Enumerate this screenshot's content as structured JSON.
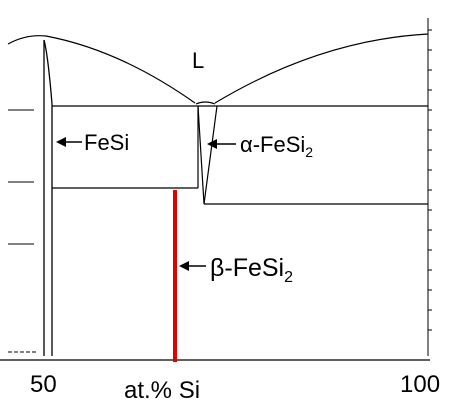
{
  "diagram": {
    "phase_liquid": "L",
    "label_fesi": "FeSi",
    "label_alpha_prefix": "α-FeSi",
    "label_alpha_sub": "2",
    "label_beta_prefix": "β-FeSi",
    "label_beta_sub": "2",
    "x_tick_left": "50",
    "x_tick_right": "100",
    "x_axis_label": "at.% Si",
    "colors": {
      "line": "#000000",
      "highlight": "#e00000",
      "background": "#ffffff"
    }
  }
}
